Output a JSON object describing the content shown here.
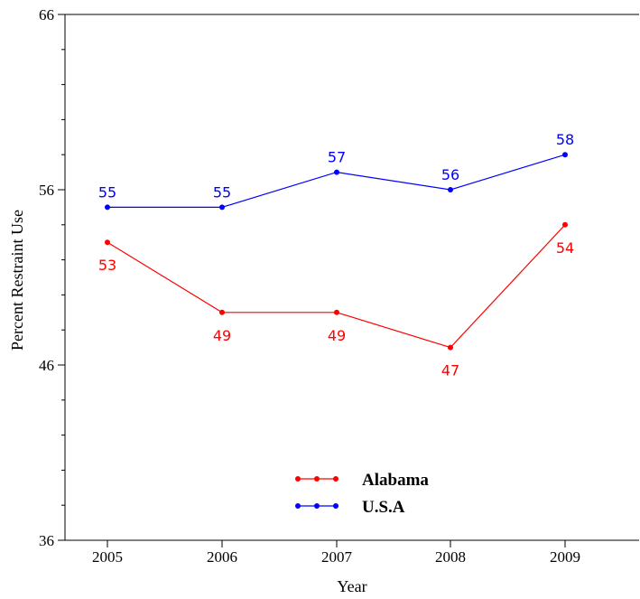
{
  "chart_data": {
    "type": "line",
    "title": "",
    "xlabel": "Year",
    "ylabel": "Percent Restraint Use",
    "x": [
      "2005",
      "2006",
      "2007",
      "2008",
      "2009"
    ],
    "ylim": [
      36,
      66
    ],
    "yticks": [
      36,
      46,
      56,
      66
    ],
    "grid": false,
    "legend_position": "bottom-center",
    "series": [
      {
        "name": "Alabama",
        "color": "#ff0000",
        "values": [
          53,
          49,
          49,
          47,
          54
        ],
        "label_position": "below"
      },
      {
        "name": "U.S.A",
        "color": "#0000ff",
        "values": [
          55,
          55,
          57,
          56,
          58
        ],
        "label_position": "above"
      }
    ]
  }
}
